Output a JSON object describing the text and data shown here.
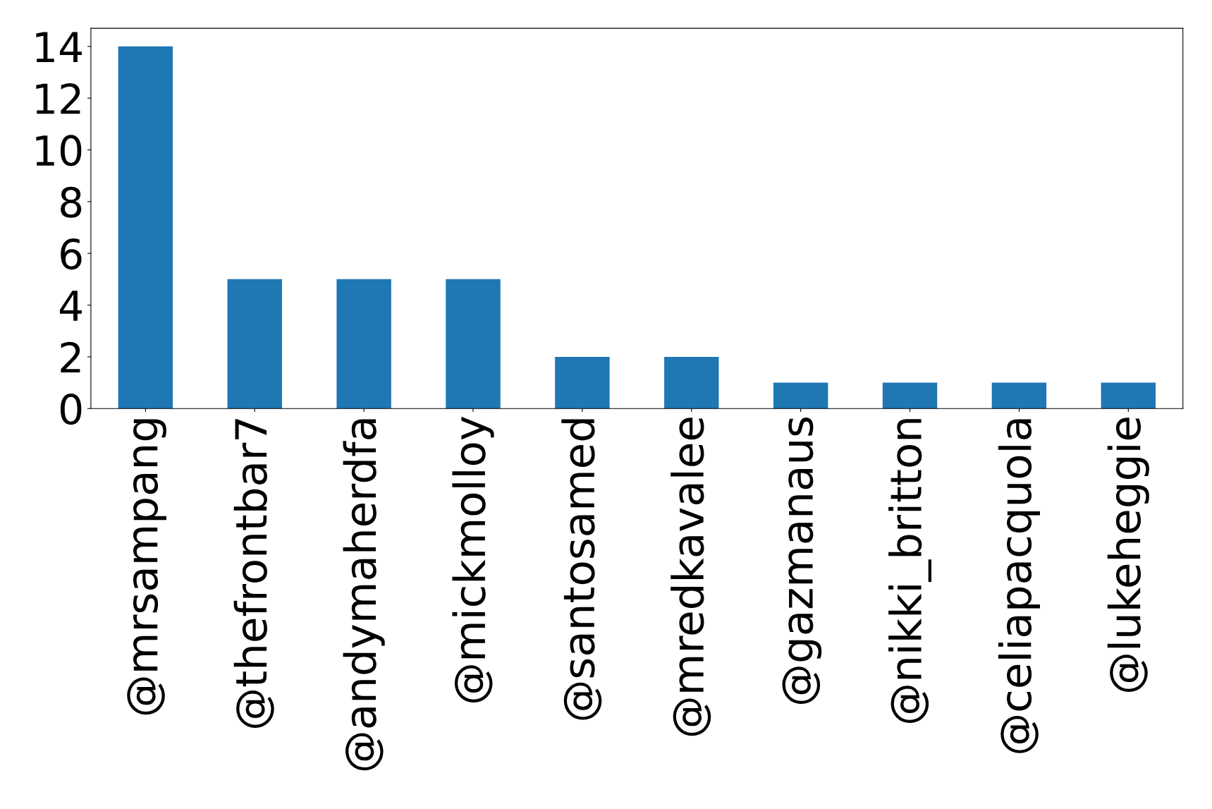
{
  "chart_data": {
    "type": "bar",
    "categories": [
      "@mrsampang",
      "@thefrontbar7",
      "@andymaherdfa",
      "@mickmolloy",
      "@santosamed",
      "@mredkavalee",
      "@gazmanaus",
      "@nikki_britton",
      "@celiapacquola",
      "@lukeheggie"
    ],
    "values": [
      14,
      5,
      5,
      5,
      2,
      2,
      1,
      1,
      1,
      1
    ],
    "color": "#1f77b4",
    "ylim": [
      0,
      14.7
    ],
    "yticks": [
      0,
      2,
      4,
      6,
      8,
      10,
      12,
      14
    ],
    "grid": false
  }
}
